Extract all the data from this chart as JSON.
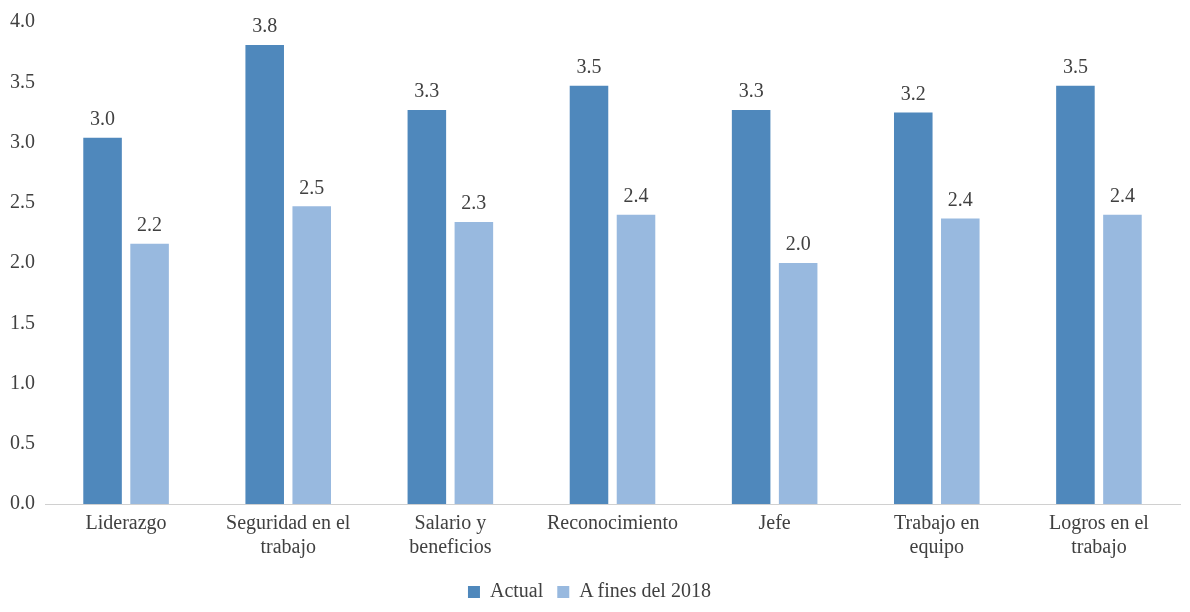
{
  "chart_data": {
    "type": "bar",
    "categories": [
      "Liderazgo",
      "Seguridad en el trabajo",
      "Salario y beneficios",
      "Reconocimiento",
      "Jefe",
      "Trabajo en equipo",
      "Logros en el trabajo"
    ],
    "series": [
      {
        "name": "Actual",
        "color": "#4f88bc",
        "values": [
          3.04,
          3.81,
          3.27,
          3.47,
          3.27,
          3.25,
          3.47
        ],
        "value_labels": [
          "3.0",
          "3.8",
          "3.3",
          "3.5",
          "3.3",
          "3.2",
          "3.5"
        ]
      },
      {
        "name": "A fines del 2018",
        "color": "#98b9df",
        "values": [
          2.16,
          2.47,
          2.34,
          2.4,
          2.0,
          2.37,
          2.4
        ],
        "value_labels": [
          "2.2",
          "2.5",
          "2.3",
          "2.4",
          "2.0",
          "2.4",
          "2.4"
        ]
      }
    ],
    "ylim": [
      0,
      4
    ],
    "yticks": [
      {
        "value": 0,
        "label": "0.0"
      },
      {
        "value": 0.5,
        "label": "0.5"
      },
      {
        "value": 1,
        "label": "1.0"
      },
      {
        "value": 1.5,
        "label": "1.5"
      },
      {
        "value": 2,
        "label": "2.0"
      },
      {
        "value": 2.5,
        "label": "2.5"
      },
      {
        "value": 3,
        "label": "3.0"
      },
      {
        "value": 3.5,
        "label": "3.5"
      },
      {
        "value": 4,
        "label": "4.0"
      }
    ],
    "grid": false,
    "legend": "bottom"
  }
}
